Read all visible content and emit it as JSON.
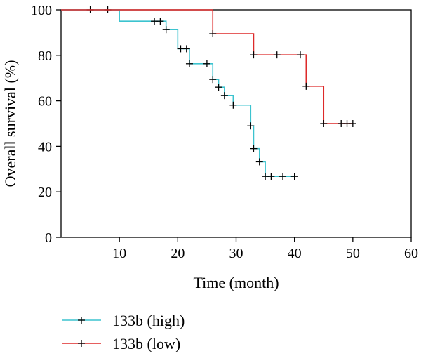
{
  "chart_data": {
    "type": "line",
    "xlabel": "Time (month)",
    "ylabel": "Overall survival (%)",
    "xlim": [
      0,
      60
    ],
    "ylim": [
      0,
      100
    ],
    "x_ticks": [
      "10",
      "20",
      "30",
      "40",
      "50",
      "60"
    ],
    "y_ticks": [
      "0",
      "20",
      "40",
      "60",
      "80",
      "100"
    ],
    "grid": false,
    "legend_position": "bottom-left",
    "series": [
      {
        "name": "133b (high)",
        "color": "#3cc3cf",
        "steps": [
          [
            0,
            100
          ],
          [
            10,
            95
          ],
          [
            18,
            91.3
          ],
          [
            20,
            82.9
          ],
          [
            22,
            76.3
          ],
          [
            26,
            69.4
          ],
          [
            27,
            66
          ],
          [
            28,
            62.3
          ],
          [
            29.5,
            58.1
          ],
          [
            32.5,
            49
          ],
          [
            33,
            39
          ],
          [
            34,
            33.2
          ],
          [
            35,
            26.8
          ],
          [
            40,
            26.8
          ]
        ],
        "censored": [
          [
            5,
            100
          ],
          [
            8,
            100
          ],
          [
            16,
            95
          ],
          [
            17,
            95
          ],
          [
            18,
            91.3
          ],
          [
            20.5,
            82.9
          ],
          [
            21.5,
            82.9
          ],
          [
            22,
            76.3
          ],
          [
            25,
            76.3
          ],
          [
            26,
            69.4
          ],
          [
            27,
            66
          ],
          [
            28,
            62.3
          ],
          [
            29.5,
            58.1
          ],
          [
            32.5,
            49
          ],
          [
            33,
            39
          ],
          [
            34,
            33.2
          ],
          [
            35,
            26.8
          ],
          [
            36,
            26.8
          ],
          [
            38,
            26.8
          ],
          [
            40,
            26.8
          ]
        ]
      },
      {
        "name": "133b (low)",
        "color": "#dd2a2a",
        "steps": [
          [
            0,
            100
          ],
          [
            26,
            89.5
          ],
          [
            33,
            80.2
          ],
          [
            42,
            66.4
          ],
          [
            45,
            50
          ],
          [
            50,
            50
          ]
        ],
        "censored": [
          [
            26,
            89.5
          ],
          [
            33,
            80.2
          ],
          [
            37,
            80.2
          ],
          [
            41,
            80.2
          ],
          [
            42,
            66.4
          ],
          [
            45,
            50
          ],
          [
            48,
            50
          ],
          [
            49,
            50
          ],
          [
            50,
            50
          ]
        ]
      }
    ]
  }
}
